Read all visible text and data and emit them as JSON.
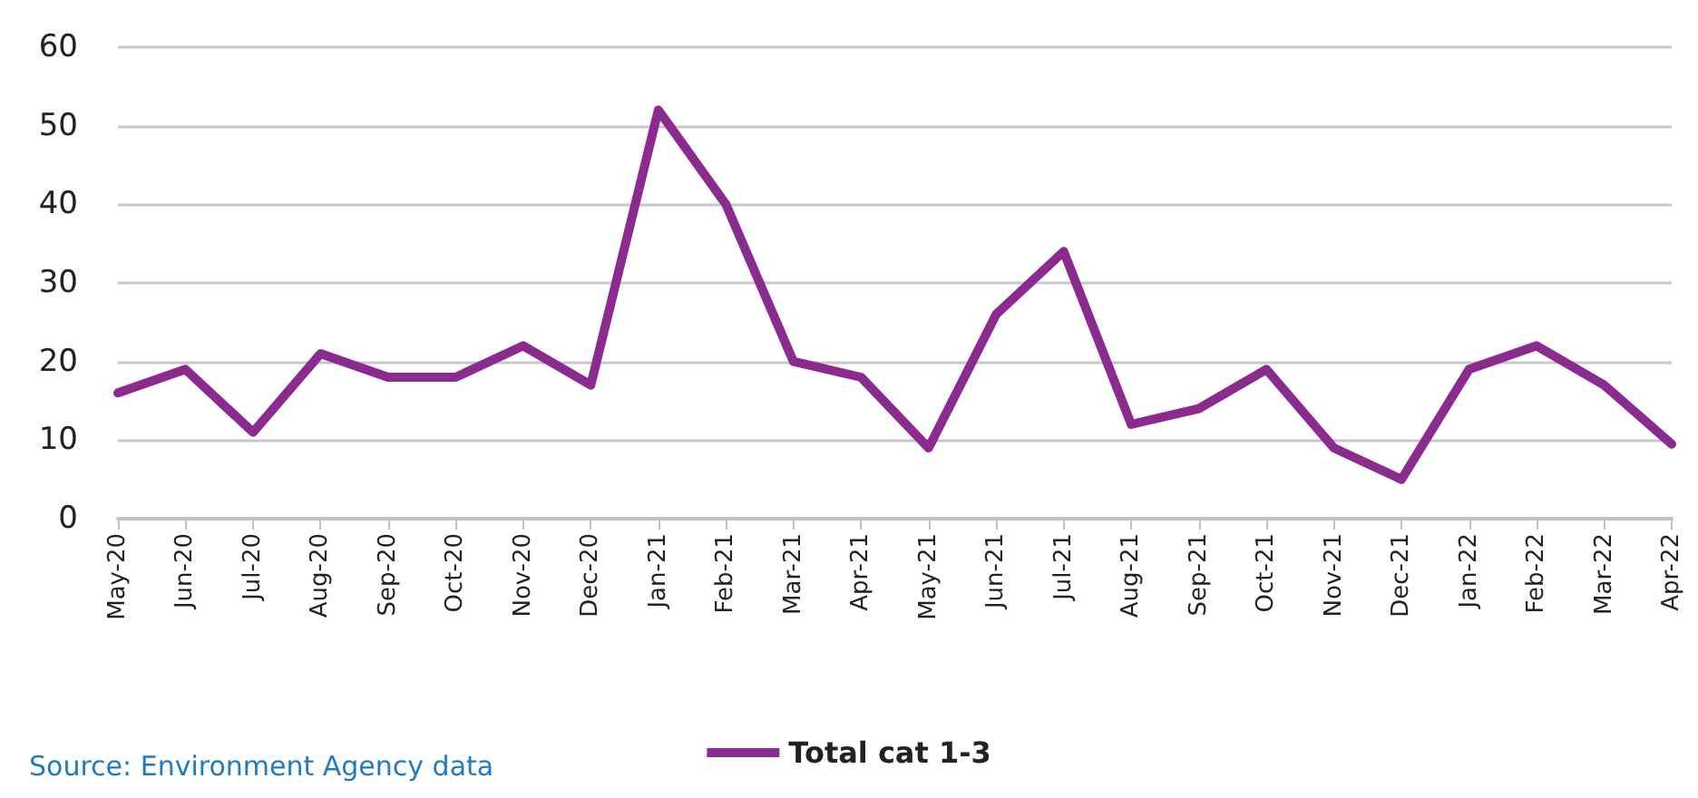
{
  "chart_data": {
    "type": "line",
    "categories": [
      "May-20",
      "Jun-20",
      "Jul-20",
      "Aug-20",
      "Sep-20",
      "Oct-20",
      "Nov-20",
      "Dec-20",
      "Jan-21",
      "Feb-21",
      "Mar-21",
      "Apr-21",
      "May-21",
      "Jun-21",
      "Jul-21",
      "Aug-21",
      "Sep-21",
      "Oct-21",
      "Nov-21",
      "Dec-21",
      "Jan-22",
      "Feb-22",
      "Mar-22",
      "Apr-22"
    ],
    "series": [
      {
        "name": "Total cat 1-3",
        "color": "#8b2a8f",
        "values": [
          16,
          19,
          11,
          21,
          18,
          18,
          22,
          17,
          52,
          40,
          20,
          18,
          9,
          26,
          34,
          12,
          14,
          19,
          9,
          5,
          19,
          22,
          17,
          9.5
        ]
      }
    ],
    "ylim": [
      0,
      60
    ],
    "yticks": [
      0,
      10,
      20,
      30,
      40,
      50,
      60
    ],
    "grid": "y",
    "legend": "bottom",
    "marker": "none",
    "line_style": "solid",
    "annotations": [
      "Source: Environment Agency data"
    ]
  }
}
